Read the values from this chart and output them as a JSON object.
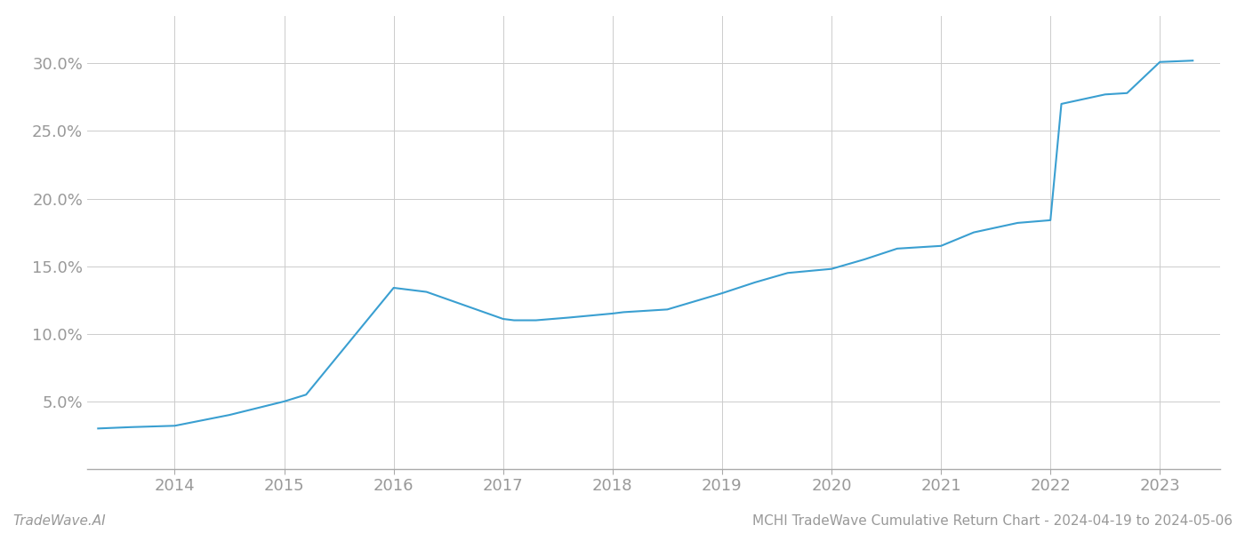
{
  "x_years": [
    2013.3,
    2013.6,
    2014.0,
    2014.5,
    2015.0,
    2015.2,
    2016.0,
    2016.3,
    2017.0,
    2017.1,
    2017.3,
    2017.6,
    2018.0,
    2018.1,
    2018.5,
    2019.0,
    2019.3,
    2019.6,
    2020.0,
    2020.3,
    2020.6,
    2021.0,
    2021.3,
    2021.7,
    2022.0,
    2022.1,
    2022.5,
    2022.7,
    2023.0,
    2023.3
  ],
  "y_values": [
    0.03,
    0.031,
    0.032,
    0.04,
    0.05,
    0.055,
    0.134,
    0.131,
    0.111,
    0.11,
    0.11,
    0.112,
    0.115,
    0.116,
    0.118,
    0.13,
    0.138,
    0.145,
    0.148,
    0.155,
    0.163,
    0.165,
    0.175,
    0.182,
    0.184,
    0.27,
    0.277,
    0.278,
    0.301,
    0.302
  ],
  "line_color": "#3a9fd1",
  "line_width": 1.5,
  "background_color": "#ffffff",
  "grid_color": "#cccccc",
  "footer_left": "TradeWave.AI",
  "footer_right": "MCHI TradeWave Cumulative Return Chart - 2024-04-19 to 2024-05-06",
  "xlim": [
    2013.2,
    2023.55
  ],
  "ylim": [
    0.0,
    0.335
  ],
  "yticks": [
    0.05,
    0.1,
    0.15,
    0.2,
    0.25,
    0.3
  ],
  "xtick_years": [
    2014,
    2015,
    2016,
    2017,
    2018,
    2019,
    2020,
    2021,
    2022,
    2023
  ],
  "tick_label_color": "#999999",
  "tick_fontsize": 13,
  "footer_fontsize": 11,
  "spine_color": "#aaaaaa"
}
